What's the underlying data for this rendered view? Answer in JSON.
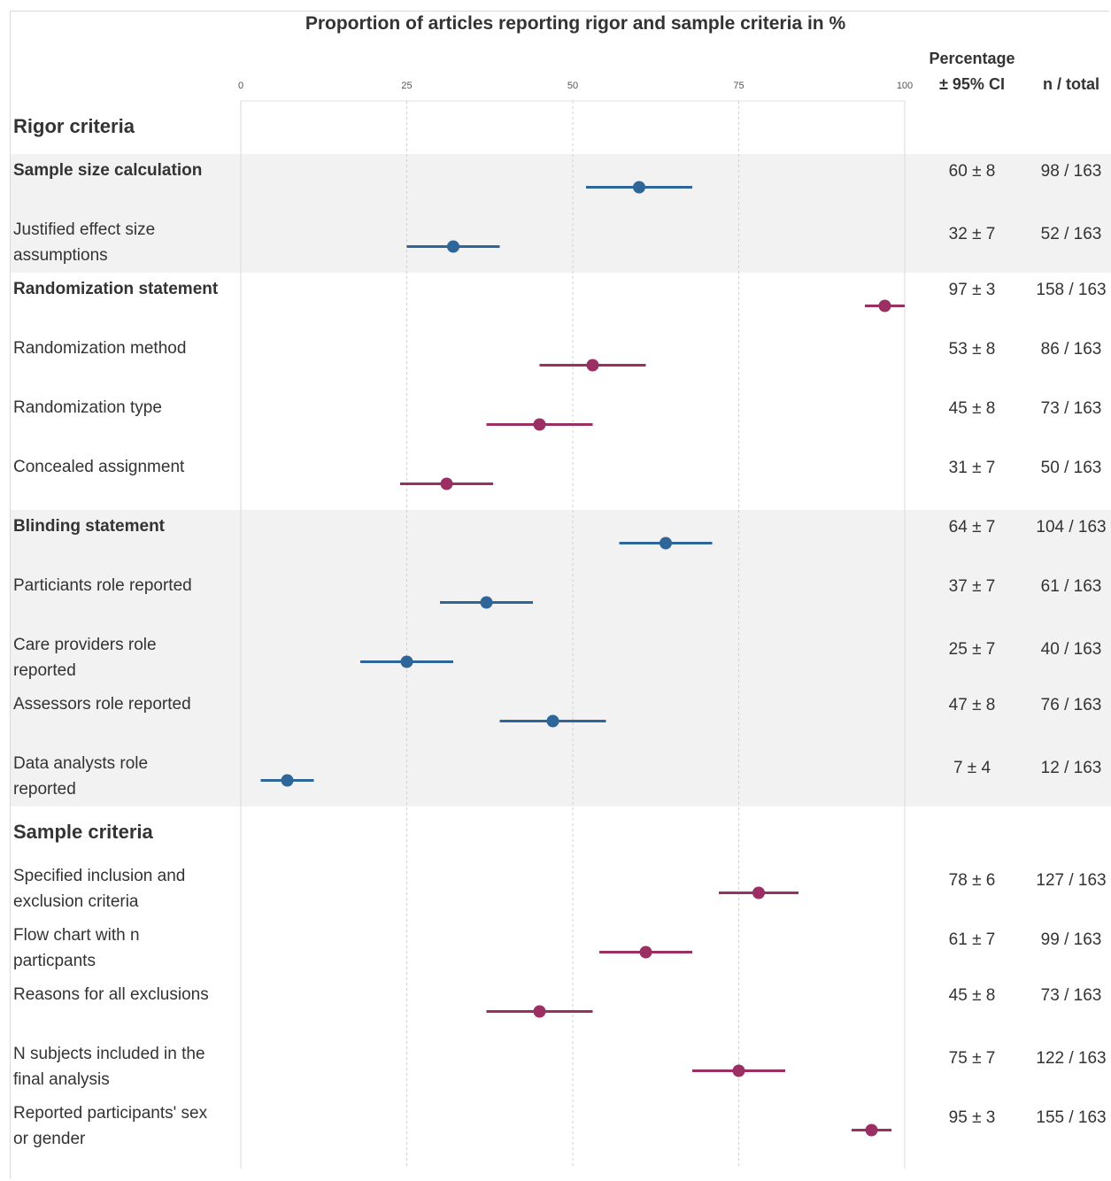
{
  "chart_data": {
    "type": "scatter",
    "title": "Proportion of articles reporting rigor and sample criteria in %",
    "xlim": [
      0,
      100
    ],
    "xticks": [
      0,
      25,
      50,
      75,
      100
    ],
    "grid": true,
    "columns": {
      "pct_header_1": "Percentage",
      "pct_header_2": "± 95% CI",
      "n_header": "n / total"
    },
    "colors": {
      "blue": "#2e6699",
      "magenta": "#9b2f63",
      "band": "#f2f2f2"
    },
    "sections": [
      {
        "label": "Rigor criteria",
        "rows": [
          {
            "label": "Sample size calculation",
            "bold": true,
            "value": 60,
            "ci": 8,
            "ci_text": "60 ± 8",
            "n_text": "98 / 163",
            "color": "blue",
            "band": true
          },
          {
            "label": "Justified effect size assumptions",
            "bold": false,
            "value": 32,
            "ci": 7,
            "ci_text": "32 ± 7",
            "n_text": "52 / 163",
            "color": "blue",
            "band": true
          },
          {
            "label": "Randomization statement",
            "bold": true,
            "value": 97,
            "ci": 3,
            "ci_text": "97 ± 3",
            "n_text": "158 / 163",
            "color": "magenta",
            "band": false
          },
          {
            "label": "Randomization method",
            "bold": false,
            "value": 53,
            "ci": 8,
            "ci_text": "53 ± 8",
            "n_text": "86 / 163",
            "color": "magenta",
            "band": false
          },
          {
            "label": "Randomization type",
            "bold": false,
            "value": 45,
            "ci": 8,
            "ci_text": "45 ± 8",
            "n_text": "73 / 163",
            "color": "magenta",
            "band": false
          },
          {
            "label": "Concealed assignment",
            "bold": false,
            "value": 31,
            "ci": 7,
            "ci_text": "31 ± 7",
            "n_text": "50 / 163",
            "color": "magenta",
            "band": false
          },
          {
            "label": "Blinding statement",
            "bold": true,
            "value": 64,
            "ci": 7,
            "ci_text": "64 ± 7",
            "n_text": "104 / 163",
            "color": "blue",
            "band": true
          },
          {
            "label": "Particiants role reported",
            "bold": false,
            "value": 37,
            "ci": 7,
            "ci_text": "37 ± 7",
            "n_text": "61 / 163",
            "color": "blue",
            "band": true
          },
          {
            "label": "Care providers role reported",
            "bold": false,
            "value": 25,
            "ci": 7,
            "ci_text": "25 ± 7",
            "n_text": "40 / 163",
            "color": "blue",
            "band": true
          },
          {
            "label": "Assessors role reported",
            "bold": false,
            "value": 47,
            "ci": 8,
            "ci_text": "47 ± 8",
            "n_text": "76 / 163",
            "color": "blue",
            "band": true
          },
          {
            "label": "Data analysts role reported",
            "bold": false,
            "value": 7,
            "ci": 4,
            "ci_text": "7 ± 4",
            "n_text": "12 / 163",
            "color": "blue",
            "band": true
          }
        ]
      },
      {
        "label": "Sample criteria",
        "rows": [
          {
            "label": "Specified inclusion and exclusion criteria",
            "bold": false,
            "value": 78,
            "ci": 6,
            "ci_text": "78 ± 6",
            "n_text": "127 / 163",
            "color": "magenta",
            "band": false
          },
          {
            "label": "Flow chart with n particpants",
            "bold": false,
            "value": 61,
            "ci": 7,
            "ci_text": "61 ± 7",
            "n_text": "99 / 163",
            "color": "magenta",
            "band": false
          },
          {
            "label": "Reasons for all exclusions",
            "bold": false,
            "value": 45,
            "ci": 8,
            "ci_text": "45 ± 8",
            "n_text": "73 / 163",
            "color": "magenta",
            "band": false
          },
          {
            "label": "N subjects included in the final analysis",
            "bold": false,
            "value": 75,
            "ci": 7,
            "ci_text": "75 ± 7",
            "n_text": "122 / 163",
            "color": "magenta",
            "band": false
          },
          {
            "label": "Reported participants' sex or gender",
            "bold": false,
            "value": 95,
            "ci": 3,
            "ci_text": "95 ± 3",
            "n_text": "155 / 163",
            "color": "magenta",
            "band": false
          }
        ]
      }
    ]
  }
}
